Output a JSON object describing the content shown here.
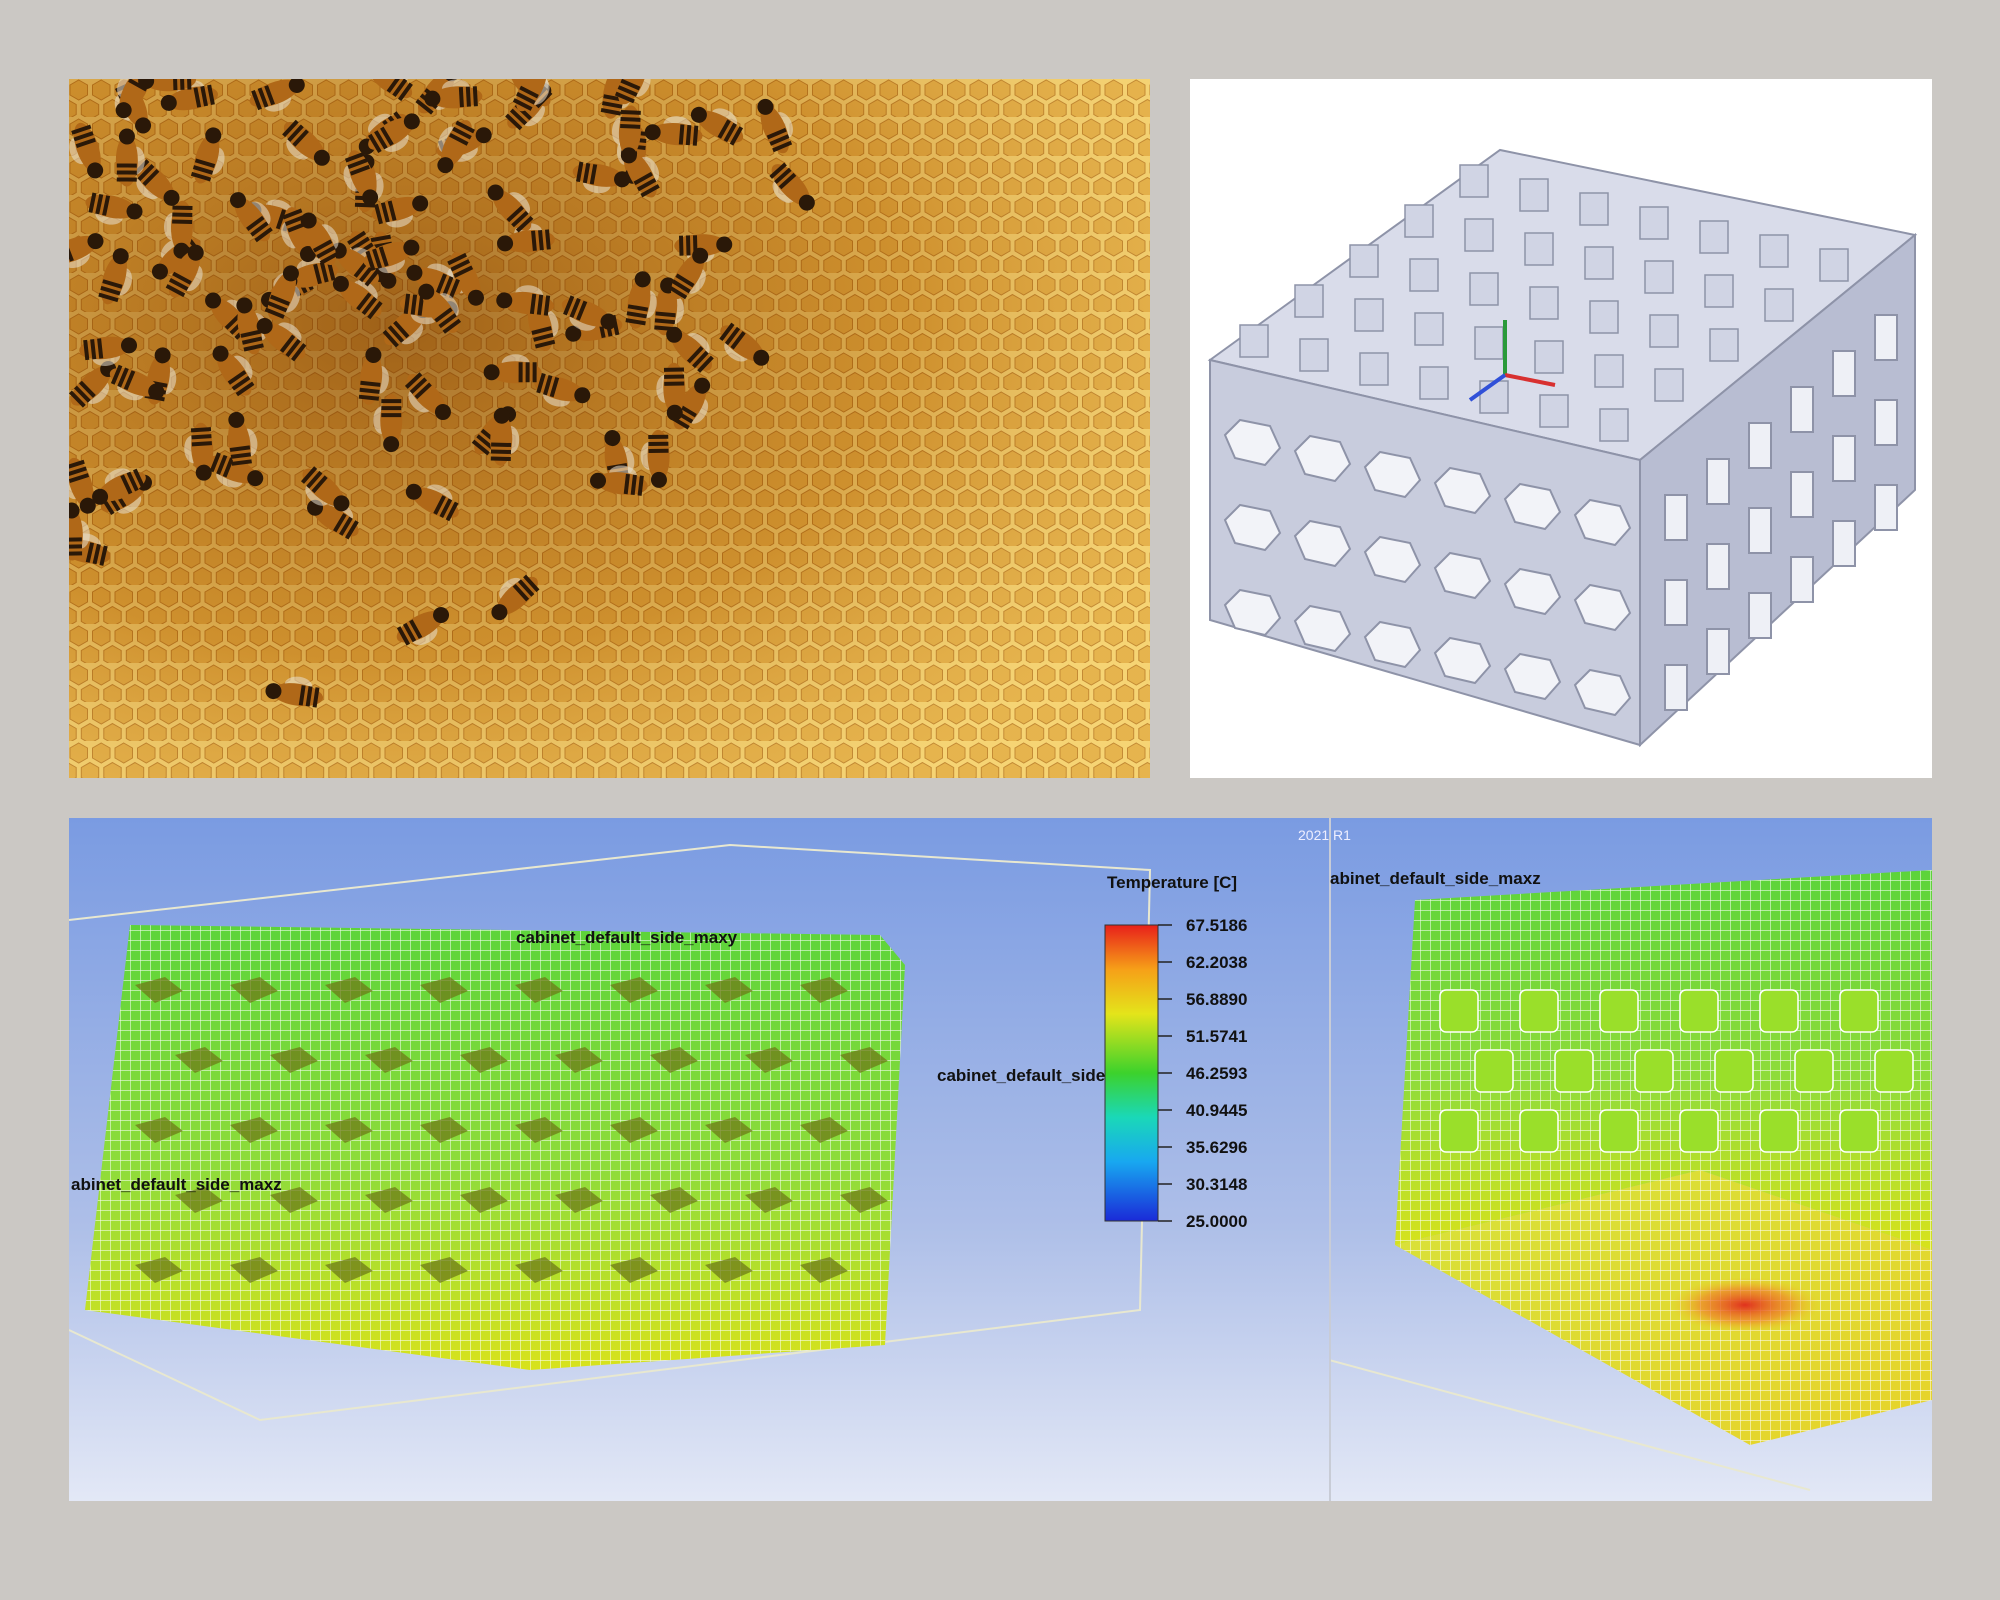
{
  "simulation": {
    "version": "2021 R1",
    "legend": {
      "title": "Temperature [C]",
      "labels": [
        "67.5186",
        "62.2038",
        "56.8890",
        "51.5741",
        "46.2593",
        "40.9445",
        "35.6296",
        "30.3148",
        "25.0000"
      ]
    },
    "annotations": [
      "cabinet_default_side_maxy",
      "cabinet_default_side_minz",
      "abinet_default_side_maxz",
      "abinet_default_side_maxz"
    ]
  }
}
